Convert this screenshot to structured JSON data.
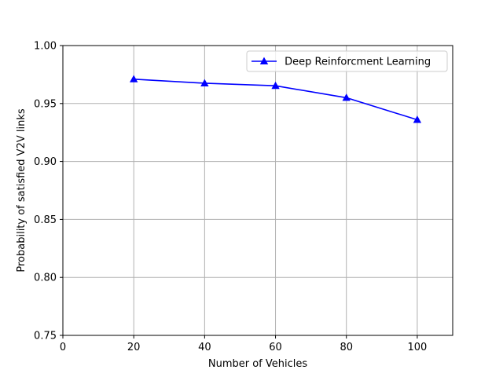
{
  "chart_data": {
    "type": "line",
    "title": "",
    "xlabel": "Number of Vehicles",
    "ylabel": "Probability of satisfied V2V links",
    "xlim": [
      0,
      110
    ],
    "ylim": [
      0.75,
      1.0
    ],
    "xticks": [
      0,
      20,
      40,
      60,
      80,
      100
    ],
    "yticks": [
      0.75,
      0.8,
      0.85,
      0.9,
      0.95,
      1.0
    ],
    "xtick_labels": [
      "0",
      "20",
      "40",
      "60",
      "80",
      "100"
    ],
    "ytick_labels": [
      "0.75",
      "0.80",
      "0.85",
      "0.90",
      "0.95",
      "1.00"
    ],
    "grid": true,
    "legend_position": "top-right",
    "series": [
      {
        "name": " Deep Reinforcment Learning",
        "color": "#0000ff",
        "marker": "triangle-up",
        "x": [
          20,
          40,
          60,
          80,
          100
        ],
        "y": [
          0.971,
          0.9675,
          0.9653,
          0.955,
          0.936
        ]
      }
    ]
  }
}
